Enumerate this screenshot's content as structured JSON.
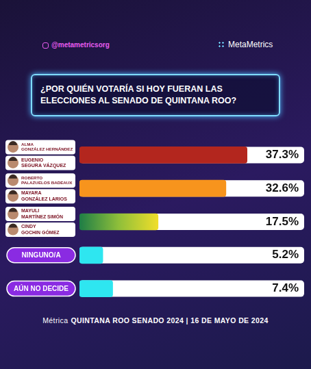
{
  "chart_data": {
    "type": "bar",
    "orientation": "horizontal",
    "handle": "@metametricsorg",
    "brand": "MetaMetrics",
    "title": "¿POR QUIÉN VOTARÍA SI HOY FUERAN LAS ELECCIONES AL SENADO DE QUINTANA ROO?",
    "categories": [
      [
        "ALMA GONZÁLEZ HERNÁNDEZ",
        "EUGENIO SEGURA VÁZQUEZ"
      ],
      [
        "ROBERTO PALAZUELOS BADEAUX",
        "MAYARA GONZÁLEZ LARIOS"
      ],
      [
        "MAYULI MARTÍNEZ SIMÓN",
        "CINDY GOCHIN GÓMEZ"
      ],
      "NINGUNO/A",
      "AÚN NO DECIDE"
    ],
    "values": [
      37.3,
      32.6,
      17.5,
      5.2,
      7.4
    ],
    "value_labels": [
      "37.3%",
      "32.6%",
      "17.5%",
      "5.2%",
      "7.4%"
    ],
    "colors": [
      "#b3261e",
      "#f7941d",
      [
        "#1e7d46",
        "#8fbf3a",
        "#f0de2a"
      ],
      "#2ee6f0",
      "#2ee6f0"
    ],
    "xlim": [
      0,
      50
    ],
    "data_labels": true,
    "tick_labels": false,
    "grid": false,
    "footer_prefix": "Métrica",
    "footer": "QUINTANA ROO SENADO 2024 | 16 DE MAYO DE 2024"
  }
}
